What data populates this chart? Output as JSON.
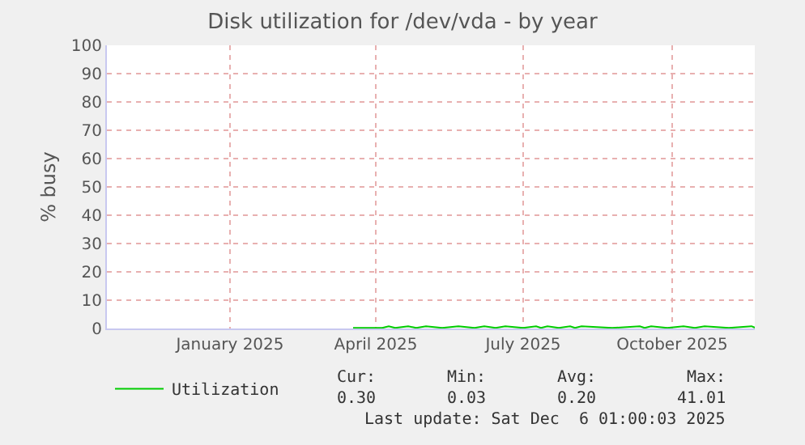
{
  "chart_data": {
    "type": "line",
    "title": "Disk utilization for /dev/vda - by year",
    "ylabel": "% busy",
    "xlim": [
      "2024-10-17",
      "2025-11-21"
    ],
    "xticks": [
      {
        "value": "2025-01-01",
        "label": "January 2025"
      },
      {
        "value": "2025-04-01",
        "label": "April 2025"
      },
      {
        "value": "2025-07-01",
        "label": "July 2025"
      },
      {
        "value": "2025-10-01",
        "label": "October 2025"
      }
    ],
    "ylim": [
      0,
      100
    ],
    "yticks": [
      0,
      10,
      20,
      30,
      40,
      50,
      60,
      70,
      80,
      90,
      100
    ],
    "grid": true,
    "legend": "bottom left",
    "series": [
      {
        "name": "Utilization",
        "color": "#00cc00",
        "x": [
          "2025-03-18",
          "2025-04-05",
          "2025-04-09",
          "2025-04-13",
          "2025-04-21",
          "2025-04-26",
          "2025-05-02",
          "2025-05-12",
          "2025-05-22",
          "2025-06-01",
          "2025-06-07",
          "2025-06-14",
          "2025-06-20",
          "2025-07-01",
          "2025-07-09",
          "2025-07-12",
          "2025-07-16",
          "2025-07-23",
          "2025-07-30",
          "2025-08-02",
          "2025-08-06",
          "2025-08-25",
          "2025-09-11",
          "2025-09-14",
          "2025-09-18",
          "2025-09-28",
          "2025-10-08",
          "2025-10-15",
          "2025-10-21",
          "2025-11-05",
          "2025-11-19",
          "2025-11-21"
        ],
        "values": [
          0.2,
          0.2,
          0.8,
          0.2,
          0.8,
          0.2,
          0.8,
          0.2,
          0.8,
          0.2,
          0.8,
          0.2,
          0.8,
          0.2,
          0.8,
          0.2,
          0.8,
          0.2,
          0.8,
          0.2,
          0.8,
          0.2,
          0.8,
          0.2,
          0.8,
          0.2,
          0.8,
          0.2,
          0.8,
          0.2,
          0.8,
          0.3
        ]
      }
    ],
    "annotations": [
      "Cur:",
      "Min:",
      "Avg:",
      "Max:",
      "0.30",
      "0.03",
      "0.20",
      "41.01",
      "Last update: Sat Dec  6 01:00:03 2025"
    ]
  }
}
